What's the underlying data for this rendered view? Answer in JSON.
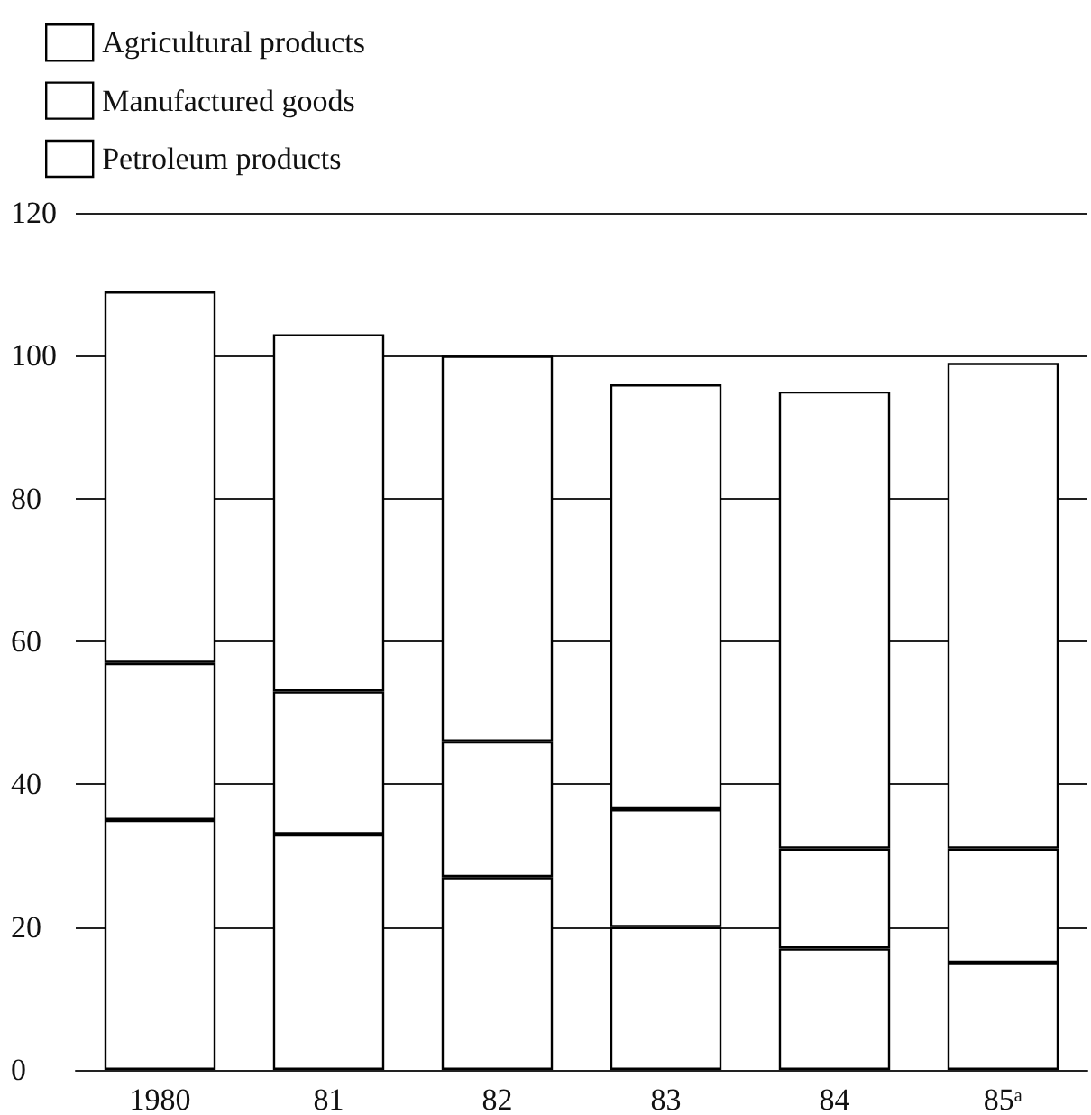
{
  "chart_data": {
    "type": "bar",
    "stacked": true,
    "categories": [
      "1980",
      "81",
      "82",
      "83",
      "84",
      "85ᵃ"
    ],
    "series": [
      {
        "name": "Agricultural products",
        "color": "#ffffff",
        "values": [
          35,
          33,
          27,
          20,
          17,
          15
        ]
      },
      {
        "name": "Manufactured goods",
        "color": "#ffffff",
        "values": [
          22,
          20,
          19,
          16.5,
          14,
          16
        ]
      },
      {
        "name": "Petroleum products",
        "color": "#ffffff",
        "values": [
          52,
          50,
          54,
          59.5,
          64,
          68
        ]
      }
    ],
    "ylim": [
      0,
      120
    ],
    "yticks": [
      0,
      20,
      40,
      60,
      80,
      100,
      120
    ],
    "grid": "y",
    "legend": "top left"
  }
}
